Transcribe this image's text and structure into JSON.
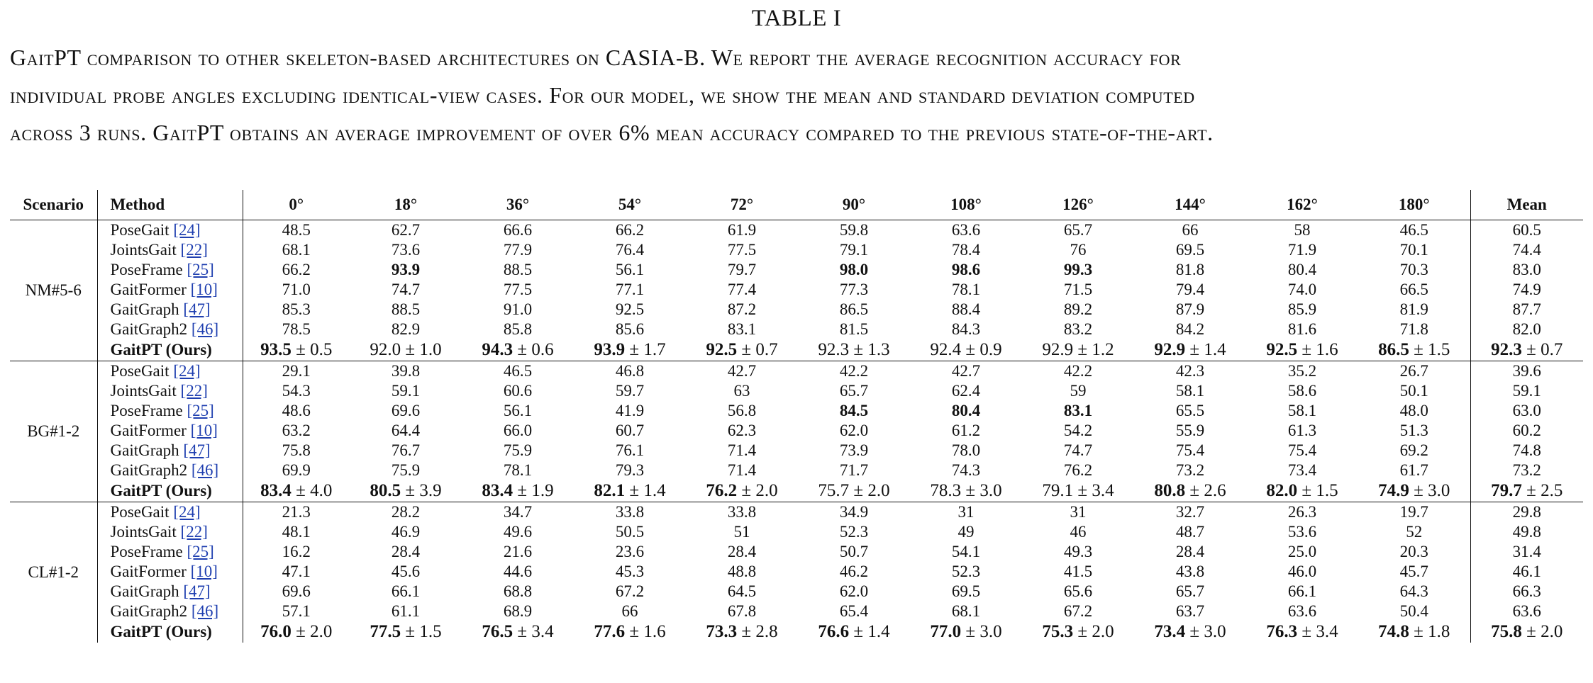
{
  "title": "TABLE I",
  "caption_lines": [
    "GaitPT comparison to other skeleton-based architectures on CASIA-B. We report the average recognition accuracy for",
    "individual probe angles excluding identical-view cases. For our model, we show the mean and standard deviation computed",
    "across 3 runs. GaitPT obtains an average improvement of over 6% mean accuracy compared to the previous state-of-the-art."
  ],
  "headers": [
    "Scenario",
    "Method",
    "0°",
    "18°",
    "36°",
    "54°",
    "72°",
    "90°",
    "108°",
    "126°",
    "144°",
    "162°",
    "180°",
    "Mean"
  ],
  "groups": [
    {
      "scenario": "NM#5-6",
      "rows": [
        {
          "method": "PoseGait",
          "ref": "[24]",
          "values": [
            "48.5",
            "62.7",
            "66.6",
            "66.2",
            "61.9",
            "59.8",
            "63.6",
            "65.7",
            "66",
            "58",
            "46.5",
            "60.5"
          ]
        },
        {
          "method": "JointsGait",
          "ref": "[22]",
          "values": [
            "68.1",
            "73.6",
            "77.9",
            "76.4",
            "77.5",
            "79.1",
            "78.4",
            "76",
            "69.5",
            "71.9",
            "70.1",
            "74.4"
          ]
        },
        {
          "method": "PoseFrame",
          "ref": "[25]",
          "values": [
            "66.2",
            "93.9",
            "88.5",
            "56.1",
            "79.7",
            "98.0",
            "98.6",
            "99.3",
            "81.8",
            "80.4",
            "70.3",
            "83.0"
          ],
          "bold": [
            1,
            5,
            6,
            7
          ]
        },
        {
          "method": "GaitFormer",
          "ref": "[10]",
          "values": [
            "71.0",
            "74.7",
            "77.5",
            "77.1",
            "77.4",
            "77.3",
            "78.1",
            "71.5",
            "79.4",
            "74.0",
            "66.5",
            "74.9"
          ]
        },
        {
          "method": "GaitGraph",
          "ref": "[47]",
          "values": [
            "85.3",
            "88.5",
            "91.0",
            "92.5",
            "87.2",
            "86.5",
            "88.4",
            "89.2",
            "87.9",
            "85.9",
            "81.9",
            "87.7"
          ]
        },
        {
          "method": "GaitGraph2",
          "ref": "[46]",
          "values": [
            "78.5",
            "82.9",
            "85.8",
            "85.6",
            "83.1",
            "81.5",
            "84.3",
            "83.2",
            "84.2",
            "81.6",
            "71.8",
            "82.0"
          ]
        }
      ],
      "ours": {
        "method": "GaitPT (Ours)",
        "means": [
          "93.5",
          "92.0",
          "94.3",
          "93.9",
          "92.5",
          "92.3",
          "92.4",
          "92.9",
          "92.9",
          "92.5",
          "86.5",
          "92.3"
        ],
        "stds": [
          "0.5",
          "1.0",
          "0.6",
          "1.7",
          "0.7",
          "1.3",
          "0.9",
          "1.2",
          "1.4",
          "1.6",
          "1.5",
          "0.7"
        ],
        "bold": [
          0,
          2,
          3,
          4,
          8,
          9,
          10,
          11
        ]
      }
    },
    {
      "scenario": "BG#1-2",
      "rows": [
        {
          "method": "PoseGait",
          "ref": "[24]",
          "values": [
            "29.1",
            "39.8",
            "46.5",
            "46.8",
            "42.7",
            "42.2",
            "42.7",
            "42.2",
            "42.3",
            "35.2",
            "26.7",
            "39.6"
          ]
        },
        {
          "method": "JointsGait",
          "ref": "[22]",
          "values": [
            "54.3",
            "59.1",
            "60.6",
            "59.7",
            "63",
            "65.7",
            "62.4",
            "59",
            "58.1",
            "58.6",
            "50.1",
            "59.1"
          ]
        },
        {
          "method": "PoseFrame",
          "ref": "[25]",
          "values": [
            "48.6",
            "69.6",
            "56.1",
            "41.9",
            "56.8",
            "84.5",
            "80.4",
            "83.1",
            "65.5",
            "58.1",
            "48.0",
            "63.0"
          ],
          "bold": [
            5,
            6,
            7
          ]
        },
        {
          "method": "GaitFormer",
          "ref": "[10]",
          "values": [
            "63.2",
            "64.4",
            "66.0",
            "60.7",
            "62.3",
            "62.0",
            "61.2",
            "54.2",
            "55.9",
            "61.3",
            "51.3",
            "60.2"
          ]
        },
        {
          "method": "GaitGraph",
          "ref": "[47]",
          "values": [
            "75.8",
            "76.7",
            "75.9",
            "76.1",
            "71.4",
            "73.9",
            "78.0",
            "74.7",
            "75.4",
            "75.4",
            "69.2",
            "74.8"
          ]
        },
        {
          "method": "GaitGraph2",
          "ref": "[46]",
          "values": [
            "69.9",
            "75.9",
            "78.1",
            "79.3",
            "71.4",
            "71.7",
            "74.3",
            "76.2",
            "73.2",
            "73.4",
            "61.7",
            "73.2"
          ]
        }
      ],
      "ours": {
        "method": "GaitPT (Ours)",
        "means": [
          "83.4",
          "80.5",
          "83.4",
          "82.1",
          "76.2",
          "75.7",
          "78.3",
          "79.1",
          "80.8",
          "82.0",
          "74.9",
          "79.7"
        ],
        "stds": [
          "4.0",
          "3.9",
          "1.9",
          "1.4",
          "2.0",
          "2.0",
          "3.0",
          "3.4",
          "2.6",
          "1.5",
          "3.0",
          "2.5"
        ],
        "bold": [
          0,
          1,
          2,
          3,
          4,
          8,
          9,
          10,
          11
        ]
      }
    },
    {
      "scenario": "CL#1-2",
      "rows": [
        {
          "method": "PoseGait",
          "ref": "[24]",
          "values": [
            "21.3",
            "28.2",
            "34.7",
            "33.8",
            "33.8",
            "34.9",
            "31",
            "31",
            "32.7",
            "26.3",
            "19.7",
            "29.8"
          ]
        },
        {
          "method": "JointsGait",
          "ref": "[22]",
          "values": [
            "48.1",
            "46.9",
            "49.6",
            "50.5",
            "51",
            "52.3",
            "49",
            "46",
            "48.7",
            "53.6",
            "52",
            "49.8"
          ]
        },
        {
          "method": "PoseFrame",
          "ref": "[25]",
          "values": [
            "16.2",
            "28.4",
            "21.6",
            "23.6",
            "28.4",
            "50.7",
            "54.1",
            "49.3",
            "28.4",
            "25.0",
            "20.3",
            "31.4"
          ]
        },
        {
          "method": "GaitFormer",
          "ref": "[10]",
          "values": [
            "47.1",
            "45.6",
            "44.6",
            "45.3",
            "48.8",
            "46.2",
            "52.3",
            "41.5",
            "43.8",
            "46.0",
            "45.7",
            "46.1"
          ]
        },
        {
          "method": "GaitGraph",
          "ref": "[47]",
          "values": [
            "69.6",
            "66.1",
            "68.8",
            "67.2",
            "64.5",
            "62.0",
            "69.5",
            "65.6",
            "65.7",
            "66.1",
            "64.3",
            "66.3"
          ]
        },
        {
          "method": "GaitGraph2",
          "ref": "[46]",
          "values": [
            "57.1",
            "61.1",
            "68.9",
            "66",
            "67.8",
            "65.4",
            "68.1",
            "67.2",
            "63.7",
            "63.6",
            "50.4",
            "63.6"
          ]
        }
      ],
      "ours": {
        "method": "GaitPT (Ours)",
        "means": [
          "76.0",
          "77.5",
          "76.5",
          "77.6",
          "73.3",
          "76.6",
          "77.0",
          "75.3",
          "73.4",
          "76.3",
          "74.8",
          "75.8"
        ],
        "stds": [
          "2.0",
          "1.5",
          "3.4",
          "1.6",
          "2.8",
          "1.4",
          "3.0",
          "2.0",
          "3.0",
          "3.4",
          "1.8",
          "2.0"
        ],
        "bold": [
          0,
          1,
          2,
          3,
          4,
          5,
          6,
          7,
          8,
          9,
          10,
          11
        ]
      }
    }
  ],
  "pm_symbol": "±"
}
